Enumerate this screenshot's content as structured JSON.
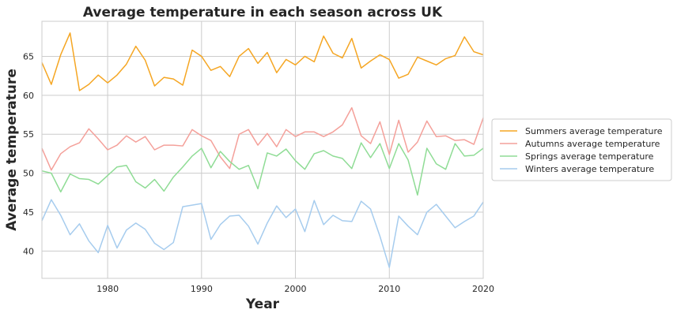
{
  "chart_data": {
    "type": "line",
    "title": "Average temperature in each season across UK",
    "xlabel": "Year",
    "ylabel": "Average temperature",
    "xlim": [
      1973,
      2020
    ],
    "ylim": [
      36.5,
      69.5
    ],
    "x_ticks": [
      1980,
      1990,
      2000,
      2010,
      2020
    ],
    "y_ticks": [
      40,
      45,
      50,
      55,
      60,
      65
    ],
    "grid": true,
    "legend_position": "right",
    "x": [
      1973,
      1974,
      1975,
      1976,
      1977,
      1978,
      1979,
      1980,
      1981,
      1982,
      1983,
      1984,
      1985,
      1986,
      1987,
      1988,
      1989,
      1990,
      1991,
      1992,
      1993,
      1994,
      1995,
      1996,
      1997,
      1998,
      1999,
      2000,
      2001,
      2002,
      2003,
      2004,
      2005,
      2006,
      2007,
      2008,
      2009,
      2010,
      2011,
      2012,
      2013,
      2014,
      2015,
      2016,
      2017,
      2018,
      2019,
      2020
    ],
    "series": [
      {
        "name": "Summers average temperature",
        "color": "#f5a623",
        "values": [
          64.2,
          61.4,
          65.2,
          68.0,
          60.6,
          61.4,
          62.6,
          61.6,
          62.6,
          64.0,
          66.3,
          64.5,
          61.2,
          62.3,
          62.1,
          61.3,
          65.8,
          65.0,
          63.2,
          63.7,
          62.4,
          65.0,
          66.0,
          64.1,
          65.5,
          62.9,
          64.6,
          63.9,
          65.0,
          64.3,
          67.6,
          65.4,
          64.8,
          67.3,
          63.5,
          64.4,
          65.2,
          64.6,
          62.2,
          62.7,
          64.9,
          64.4,
          63.9,
          64.7,
          65.1,
          67.5,
          65.6,
          65.2
        ]
      },
      {
        "name": "Autumns average temperature",
        "color": "#f4a09a",
        "values": [
          53.2,
          50.4,
          52.5,
          53.4,
          53.9,
          55.7,
          54.4,
          53.0,
          53.6,
          54.8,
          54.0,
          54.7,
          53.0,
          53.6,
          53.6,
          53.5,
          55.6,
          54.8,
          54.2,
          52.1,
          50.6,
          55.0,
          55.6,
          53.6,
          55.1,
          53.4,
          55.6,
          54.7,
          55.3,
          55.3,
          54.7,
          55.3,
          56.2,
          58.4,
          54.8,
          53.8,
          56.6,
          52.4,
          56.8,
          52.7,
          54.0,
          56.7,
          54.7,
          54.8,
          54.2,
          54.3,
          53.7,
          57.1
        ]
      },
      {
        "name": "Springs average temperature",
        "color": "#8fdc95",
        "values": [
          50.3,
          50.0,
          47.6,
          49.9,
          49.3,
          49.2,
          48.6,
          49.7,
          50.8,
          51.0,
          48.9,
          48.1,
          49.2,
          47.7,
          49.5,
          50.8,
          52.2,
          53.2,
          50.7,
          52.8,
          51.5,
          50.5,
          51.0,
          48.0,
          52.6,
          52.2,
          53.1,
          51.6,
          50.5,
          52.5,
          52.9,
          52.2,
          51.9,
          50.6,
          53.9,
          52.0,
          53.8,
          50.6,
          53.8,
          51.7,
          47.2,
          53.2,
          51.2,
          50.5,
          53.8,
          52.2,
          52.3,
          53.2
        ]
      },
      {
        "name": "Winters average temperature",
        "color": "#a6ccee",
        "values": [
          43.9,
          46.6,
          44.6,
          42.1,
          43.5,
          41.3,
          39.8,
          43.3,
          40.4,
          42.7,
          43.6,
          42.8,
          41.0,
          40.2,
          41.1,
          45.7,
          45.9,
          46.1,
          41.5,
          43.4,
          44.5,
          44.6,
          43.2,
          40.9,
          43.6,
          45.8,
          44.3,
          45.4,
          42.5,
          46.5,
          43.4,
          44.6,
          43.9,
          43.8,
          46.4,
          45.4,
          41.9,
          37.9,
          44.5,
          43.2,
          42.1,
          45.0,
          46.0,
          44.5,
          43.0,
          43.8,
          44.5,
          46.3
        ]
      }
    ]
  }
}
